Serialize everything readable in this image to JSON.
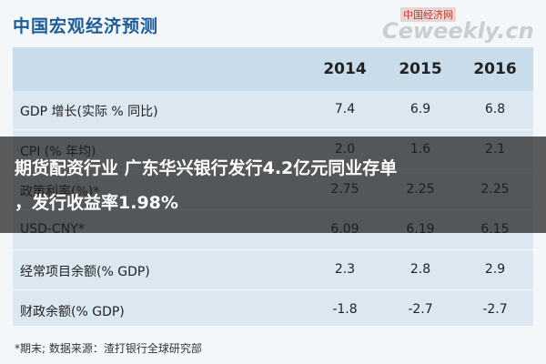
{
  "header": {
    "title": "中国宏观经济预测",
    "watermark": [
      "中国经济网",
      "Ceweekly.cn"
    ]
  },
  "table": {
    "columns": [
      "2014",
      "2015",
      "2016"
    ],
    "rows": [
      [
        "GDP 增长(实际 % 同比)",
        "7.4",
        "6.9",
        "6.8"
      ],
      [
        "CPI (% 年均)",
        "2.0",
        "1.6",
        "2.1"
      ],
      [
        "政策利率(%)*",
        "2.75",
        "2.25",
        "2.25"
      ],
      [
        "USD-CNY*",
        "6.09",
        "6.19",
        "6.15"
      ],
      [
        "经常项目余额(% GDP)",
        "2.3",
        "2.8",
        "2.9"
      ],
      [
        "财政余额(% GDP)",
        "-1.8",
        "-2.7",
        "-2.7"
      ]
    ]
  },
  "footnote": "*期末;   数据来源：渣打银行全球研究部",
  "overlay": {
    "headline": [
      "期货配资行业 广东华兴银行发行4.2亿元同业存单",
      "，发行收益率1.98%"
    ]
  }
}
